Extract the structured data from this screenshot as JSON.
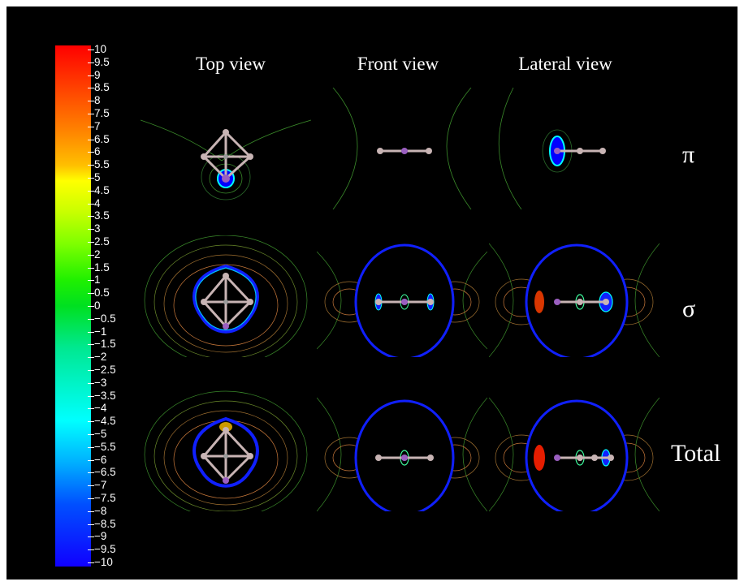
{
  "colorbar": {
    "ticks": [
      "10",
      "9.5",
      "9",
      "8.5",
      "8",
      "7.5",
      "7",
      "6.5",
      "6",
      "5.5",
      "5",
      "4.5",
      "4",
      "3.5",
      "3",
      "2.5",
      "2",
      "1.5",
      "1",
      "0.5",
      "0",
      "−0.5",
      "−1",
      "−1.5",
      "−2",
      "−2.5",
      "−3",
      "−3.5",
      "−4",
      "−4.5",
      "−5",
      "−5.5",
      "−6",
      "−6.5",
      "−7",
      "−7.5",
      "−8",
      "−8.5",
      "−9",
      "−9.5",
      "−10"
    ]
  },
  "columns": [
    {
      "title": "Top view"
    },
    {
      "title": "Front view"
    },
    {
      "title": "Lateral view"
    }
  ],
  "rows": [
    {
      "label": "π"
    },
    {
      "label": "σ"
    },
    {
      "label": "Total"
    }
  ],
  "colors": {
    "background": "#000000",
    "atom_light": "#c8b4b4",
    "atom_purple": "#9a5fc0",
    "contour_green": "#3a8a2a",
    "contour_orange": "#c8783a",
    "contour_blue": "#1020ff"
  }
}
